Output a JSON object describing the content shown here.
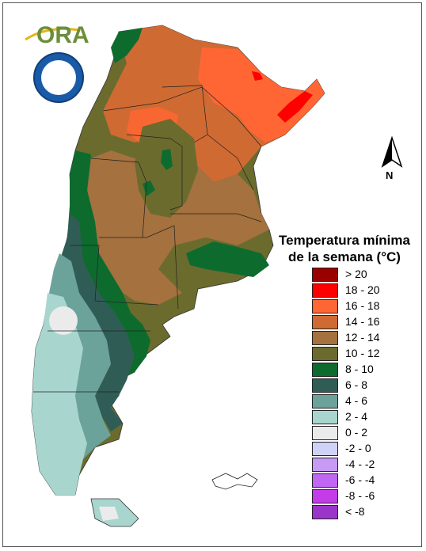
{
  "logo": {
    "org_text": "ORA",
    "seal_name": "servicio-meteorologico-nacional-seal"
  },
  "north_arrow": {
    "label": "N"
  },
  "legend": {
    "title_line1": "Temperatura mínima",
    "title_line2": "de la semana (°C)",
    "items": [
      {
        "label": "> 20",
        "color": "#990000"
      },
      {
        "label": "18 - 20",
        "color": "#ff0000"
      },
      {
        "label": "16 - 18",
        "color": "#ff6633"
      },
      {
        "label": "14 - 16",
        "color": "#d06a33"
      },
      {
        "label": "12 - 14",
        "color": "#a4713f"
      },
      {
        "label": "10 - 12",
        "color": "#6b6b2e"
      },
      {
        "label": "8 - 10",
        "color": "#0e6b2e"
      },
      {
        "label": "6 - 8",
        "color": "#2f5d56"
      },
      {
        "label": "4 - 6",
        "color": "#6ba39b"
      },
      {
        "label": "2 - 4",
        "color": "#a8d6cf"
      },
      {
        "label": "0 - 2",
        "color": "#ebebeb"
      },
      {
        "label": "-2 - 0",
        "color": "#cfd2f7"
      },
      {
        "label": "-4 - -2",
        "color": "#c79af5"
      },
      {
        "label": "-6 - -4",
        "color": "#c066f3"
      },
      {
        "label": "-8 - -6",
        "color": "#c43be8"
      },
      {
        "label": "< -8",
        "color": "#9b35c9"
      }
    ]
  }
}
